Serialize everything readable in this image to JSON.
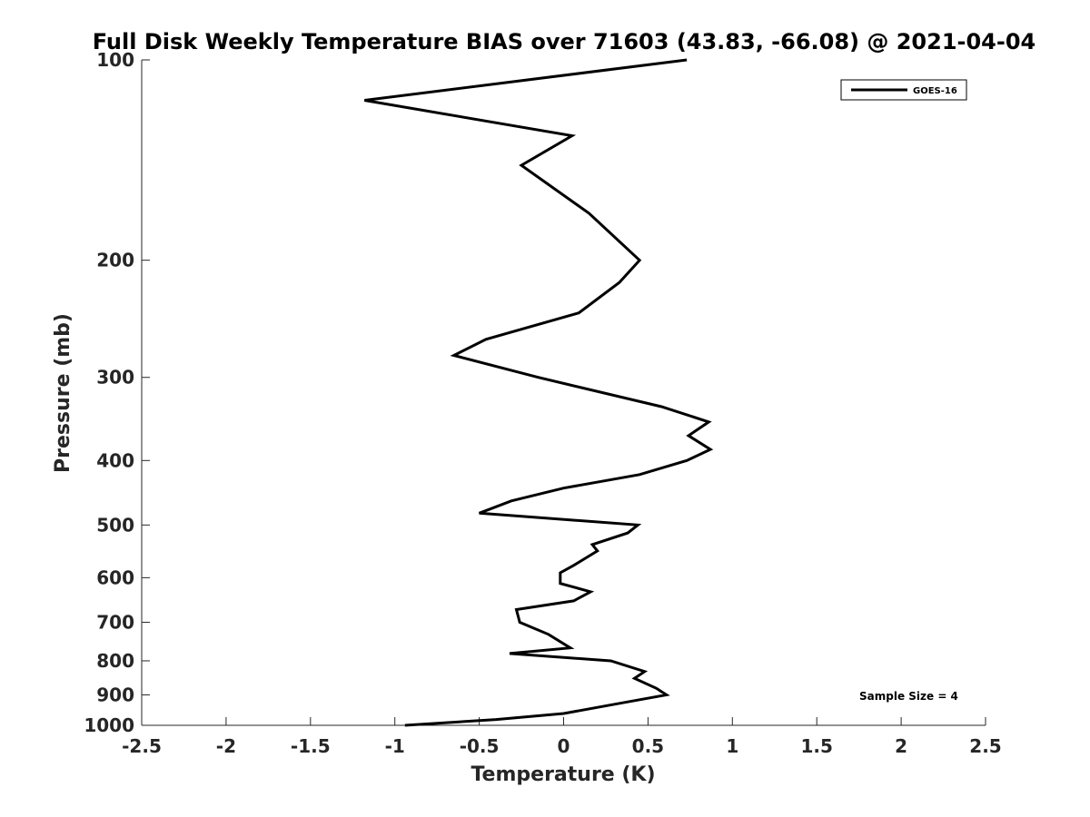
{
  "chart_data": {
    "type": "line",
    "title": "Full Disk Weekly Temperature BIAS over 71603 (43.83, -66.08) @ 2021-04-04",
    "xlabel": "Temperature (K)",
    "ylabel": "Pressure (mb)",
    "xlim": [
      -2.5,
      2.5
    ],
    "ylim": [
      100,
      1000
    ],
    "y_scale": "log",
    "y_reversed": true,
    "x_ticks": [
      "-2.5",
      "-2",
      "-1.5",
      "-1",
      "-0.5",
      "0",
      "0.5",
      "1",
      "1.5",
      "2",
      "2.5"
    ],
    "x_tick_values": [
      -2.5,
      -2,
      -1.5,
      -1,
      -0.5,
      0,
      0.5,
      1,
      1.5,
      2,
      2.5
    ],
    "y_ticks": [
      "100",
      "200",
      "300",
      "400",
      "500",
      "600",
      "700",
      "800",
      "900",
      "1000"
    ],
    "y_tick_values": [
      100,
      200,
      300,
      400,
      500,
      600,
      700,
      800,
      900,
      1000
    ],
    "legend": "top-right",
    "grid": false,
    "annotation": "Sample Size = 4",
    "series": [
      {
        "name": "GOES-16",
        "color": "#000000",
        "points": [
          [
            0.73,
            100
          ],
          [
            -1.18,
            115
          ],
          [
            0.05,
            130
          ],
          [
            -0.25,
            144
          ],
          [
            0.15,
            170
          ],
          [
            0.45,
            200
          ],
          [
            0.33,
            216
          ],
          [
            0.09,
            240
          ],
          [
            -0.46,
            263
          ],
          [
            -0.65,
            278
          ],
          [
            -0.15,
            300
          ],
          [
            0.58,
            332
          ],
          [
            0.86,
            350
          ],
          [
            0.74,
            367
          ],
          [
            0.87,
            385
          ],
          [
            0.73,
            400
          ],
          [
            0.45,
            420
          ],
          [
            0.0,
            440
          ],
          [
            -0.31,
            460
          ],
          [
            -0.5,
            480
          ],
          [
            0.44,
            500
          ],
          [
            0.38,
            514
          ],
          [
            0.17,
            535
          ],
          [
            0.2,
            547
          ],
          [
            0.06,
            575
          ],
          [
            -0.02,
            590
          ],
          [
            -0.02,
            612
          ],
          [
            0.16,
            630
          ],
          [
            0.06,
            650
          ],
          [
            -0.28,
            670
          ],
          [
            -0.26,
            700
          ],
          [
            -0.09,
            730
          ],
          [
            0.04,
            765
          ],
          [
            -0.32,
            780
          ],
          [
            0.28,
            800
          ],
          [
            0.48,
            830
          ],
          [
            0.42,
            850
          ],
          [
            0.55,
            880
          ],
          [
            0.61,
            900
          ],
          [
            0.35,
            925
          ],
          [
            0.0,
            960
          ],
          [
            -0.4,
            980
          ],
          [
            -0.94,
            1000
          ]
        ]
      }
    ]
  }
}
